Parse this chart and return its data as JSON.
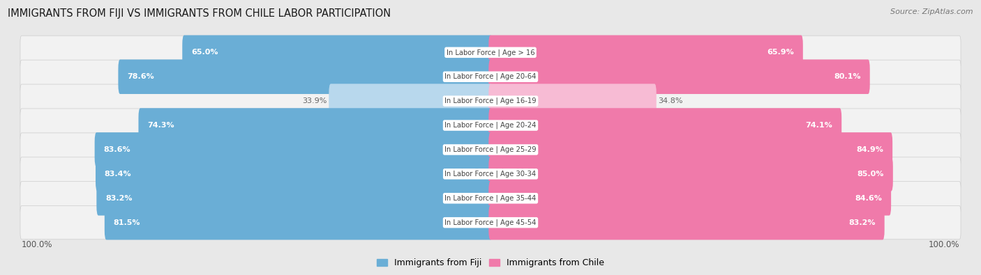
{
  "title": "IMMIGRANTS FROM FIJI VS IMMIGRANTS FROM CHILE LABOR PARTICIPATION",
  "source": "Source: ZipAtlas.com",
  "categories": [
    "In Labor Force | Age > 16",
    "In Labor Force | Age 20-64",
    "In Labor Force | Age 16-19",
    "In Labor Force | Age 20-24",
    "In Labor Force | Age 25-29",
    "In Labor Force | Age 30-34",
    "In Labor Force | Age 35-44",
    "In Labor Force | Age 45-54"
  ],
  "fiji_values": [
    65.0,
    78.6,
    33.9,
    74.3,
    83.6,
    83.4,
    83.2,
    81.5
  ],
  "chile_values": [
    65.9,
    80.1,
    34.8,
    74.1,
    84.9,
    85.0,
    84.6,
    83.2
  ],
  "fiji_color": "#6aaed6",
  "fiji_color_light": "#b8d8ed",
  "chile_color": "#f07aaa",
  "chile_color_light": "#f7bbd4",
  "label_color_dark": "#666666",
  "background_color": "#e8e8e8",
  "row_bg_color": "#f2f2f2",
  "row_border_color": "#cccccc",
  "max_value": 100.0,
  "legend_fiji": "Immigrants from Fiji",
  "legend_chile": "Immigrants from Chile",
  "center_label_bg": "#ffffff",
  "center_label_color": "#444444"
}
